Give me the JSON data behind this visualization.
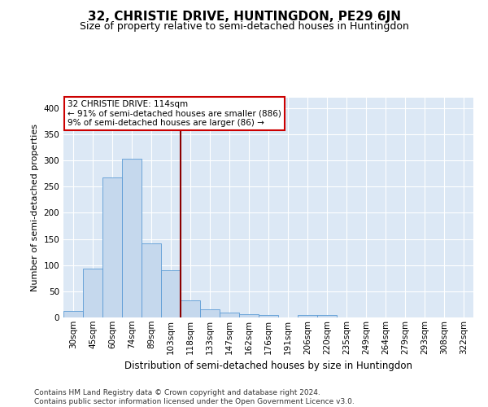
{
  "title": "32, CHRISTIE DRIVE, HUNTINGDON, PE29 6JN",
  "subtitle": "Size of property relative to semi-detached houses in Huntingdon",
  "xlabel": "Distribution of semi-detached houses by size in Huntingdon",
  "ylabel": "Number of semi-detached properties",
  "categories": [
    "30sqm",
    "45sqm",
    "60sqm",
    "74sqm",
    "89sqm",
    "103sqm",
    "118sqm",
    "133sqm",
    "147sqm",
    "162sqm",
    "176sqm",
    "191sqm",
    "206sqm",
    "220sqm",
    "235sqm",
    "249sqm",
    "264sqm",
    "279sqm",
    "293sqm",
    "308sqm",
    "322sqm"
  ],
  "values": [
    13,
    93,
    268,
    303,
    141,
    90,
    33,
    16,
    10,
    7,
    4,
    0,
    4,
    4,
    0,
    0,
    0,
    0,
    0,
    0,
    0
  ],
  "bar_color": "#c5d8ed",
  "bar_edge_color": "#5b9bd5",
  "vline_color": "#8b0000",
  "vline_x_index": 6,
  "annotation_text": "32 CHRISTIE DRIVE: 114sqm\n← 91% of semi-detached houses are smaller (886)\n9% of semi-detached houses are larger (86) →",
  "annotation_box_color": "#ffffff",
  "annotation_box_edge": "#cc0000",
  "ylim": [
    0,
    420
  ],
  "yticks": [
    0,
    50,
    100,
    150,
    200,
    250,
    300,
    350,
    400
  ],
  "background_color": "#dce8f5",
  "footer_text": "Contains HM Land Registry data © Crown copyright and database right 2024.\nContains public sector information licensed under the Open Government Licence v3.0.",
  "title_fontsize": 11,
  "subtitle_fontsize": 9,
  "xlabel_fontsize": 8.5,
  "ylabel_fontsize": 8,
  "tick_fontsize": 7.5,
  "annotation_fontsize": 7.5,
  "footer_fontsize": 6.5
}
